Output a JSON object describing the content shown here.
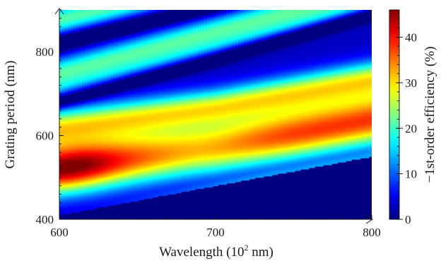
{
  "chart_data": {
    "type": "heatmap",
    "xlabel": "Wavelength (10",
    "xlabel_sup": "2",
    "xlabel_tail": " nm)",
    "ylabel": "Grating period (nm)",
    "colorbar_label": "−1st-order efficiency (%)",
    "xlim": [
      600,
      800
    ],
    "ylim": [
      400,
      900
    ],
    "x_ticks": [
      "600",
      "700",
      "800"
    ],
    "y_ticks": [
      "400",
      "600",
      "800"
    ],
    "colorbar_range": [
      0,
      46
    ],
    "colorbar_ticks": [
      "0",
      "10",
      "20",
      "30",
      "40"
    ],
    "colormap": "jet",
    "cutoff_line": {
      "x": [
        600,
        800
      ],
      "y": [
        410,
        550
      ],
      "below_value": 0
    },
    "bands": [
      {
        "feature": "main efficiency band center",
        "x": [
          600,
          700,
          800
        ],
        "y": [
          520,
          568,
          635
        ],
        "peak_value": 44
      },
      {
        "feature": "low-efficiency dip",
        "x": [
          600,
          700,
          800
        ],
        "y": [
          680,
          782,
          890
        ],
        "value": 2
      },
      {
        "feature": "lower high-period ridge",
        "x": [
          600,
          700,
          800
        ],
        "y": [
          750,
          850,
          950
        ],
        "value": 20
      },
      {
        "feature": "upper low-efficiency dip",
        "x": [
          600,
          700,
          800
        ],
        "y": [
          822,
          912,
          1002
        ],
        "value": 5
      }
    ]
  }
}
